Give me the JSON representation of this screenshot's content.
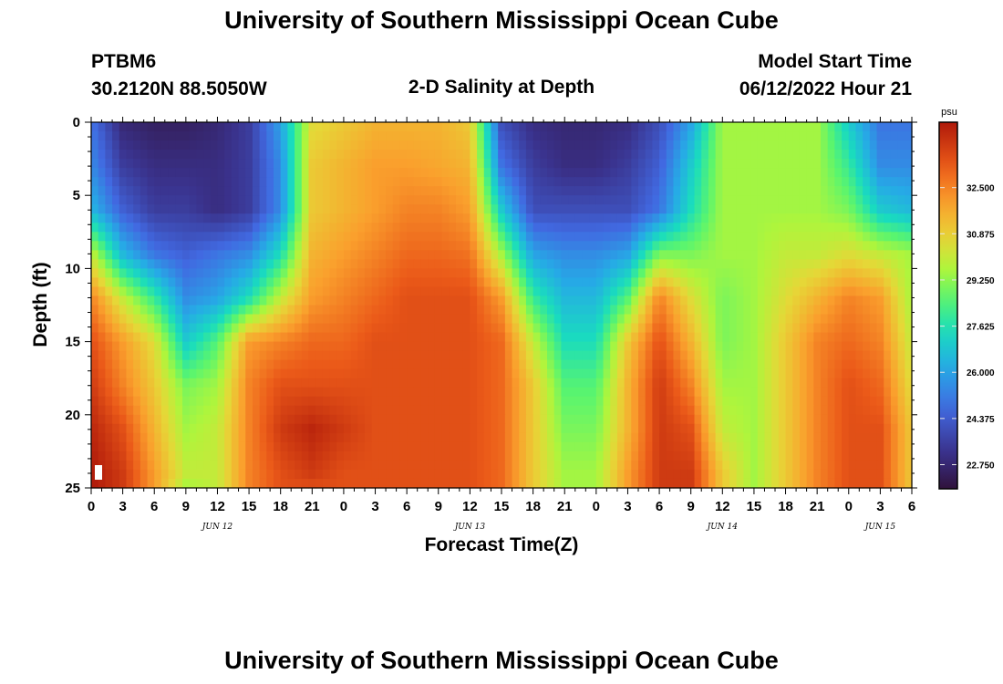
{
  "page": {
    "title_top": "University of Southern Mississippi Ocean Cube",
    "title_bottom": "University of Southern Mississippi Ocean Cube",
    "station": "PTBM6",
    "coords": "30.2120N  88.5050W",
    "plot_title": "2-D Salinity at Depth",
    "model_label": "Model Start Time",
    "model_time": "06/12/2022 Hour 21"
  },
  "chart_data": {
    "type": "heatmap",
    "title": "2-D Salinity at Depth",
    "xlabel": "Forecast Time(Z)",
    "ylabel": "Depth (ft)",
    "x_tick_labels": [
      "0",
      "3",
      "6",
      "9",
      "12",
      "15",
      "18",
      "21",
      "0",
      "3",
      "6",
      "9",
      "12",
      "15",
      "18",
      "21",
      "0",
      "3",
      "6",
      "9",
      "12",
      "15",
      "18",
      "21",
      "0",
      "3",
      "6"
    ],
    "x_range_hours": [
      0,
      78
    ],
    "date_labels": [
      {
        "label": "JUN 12",
        "hour": 12
      },
      {
        "label": "JUN 13",
        "hour": 36
      },
      {
        "label": "JUN 14",
        "hour": 60
      },
      {
        "label": "JUN 15",
        "hour": 75
      }
    ],
    "y_ticks": [
      0,
      5,
      10,
      15,
      20,
      25
    ],
    "ylim": [
      0,
      25
    ],
    "colorbar": {
      "unit": "psu",
      "min": 21.9,
      "max": 34.8,
      "ticks": [
        "32.500",
        "30.875",
        "29.250",
        "27.625",
        "26.000",
        "24.375",
        "22.750"
      ]
    },
    "salinity_psu": {
      "depth_ft": [
        0,
        3,
        6,
        9,
        12,
        15,
        18,
        21,
        24,
        25
      ],
      "time_h": [
        0,
        3,
        6,
        9,
        12,
        15,
        18,
        21,
        24,
        27,
        30,
        33,
        36,
        39,
        42,
        45,
        48,
        51,
        54,
        57,
        60,
        63,
        66,
        69,
        72,
        75,
        78
      ],
      "rows": [
        [
          25.0,
          22.8,
          22.5,
          22.5,
          22.8,
          23.5,
          26.0,
          30.5,
          31.0,
          31.5,
          31.5,
          31.5,
          31.0,
          24.0,
          23.0,
          22.8,
          22.8,
          23.0,
          24.0,
          26.0,
          29.5,
          29.5,
          29.5,
          29.5,
          27.0,
          25.0,
          25.0
        ],
        [
          25.5,
          23.5,
          23.0,
          23.0,
          23.0,
          23.5,
          25.5,
          31.0,
          31.5,
          32.0,
          32.0,
          31.8,
          31.5,
          25.0,
          23.5,
          23.0,
          23.0,
          23.5,
          24.5,
          27.0,
          29.5,
          29.5,
          29.5,
          29.5,
          28.0,
          25.5,
          25.5
        ],
        [
          26.5,
          24.5,
          23.5,
          23.5,
          23.0,
          23.5,
          25.5,
          31.0,
          31.5,
          32.0,
          32.5,
          32.5,
          32.0,
          27.0,
          24.0,
          24.0,
          24.0,
          24.0,
          25.0,
          27.5,
          29.5,
          29.5,
          29.5,
          29.5,
          29.0,
          27.0,
          26.5
        ],
        [
          30.0,
          26.5,
          25.0,
          24.5,
          25.0,
          25.5,
          27.5,
          31.5,
          32.0,
          32.5,
          33.0,
          33.0,
          32.8,
          29.5,
          26.0,
          25.5,
          25.5,
          26.0,
          29.0,
          29.0,
          29.5,
          29.5,
          30.0,
          30.0,
          30.5,
          30.0,
          29.5
        ],
        [
          32.5,
          30.0,
          28.0,
          25.5,
          26.0,
          27.5,
          30.0,
          32.0,
          32.5,
          33.0,
          33.5,
          33.5,
          33.5,
          32.0,
          28.0,
          26.5,
          26.5,
          28.5,
          32.5,
          30.5,
          29.0,
          29.5,
          30.5,
          31.5,
          32.5,
          32.0,
          29.5
        ],
        [
          33.5,
          32.0,
          30.5,
          27.0,
          28.5,
          32.0,
          32.5,
          33.0,
          33.0,
          33.5,
          33.5,
          33.5,
          33.5,
          33.0,
          30.0,
          27.5,
          27.5,
          31.0,
          33.5,
          31.5,
          29.0,
          29.5,
          31.0,
          32.5,
          33.0,
          32.5,
          30.0
        ],
        [
          34.0,
          32.5,
          31.0,
          29.0,
          29.5,
          32.5,
          33.5,
          33.5,
          33.5,
          33.5,
          33.5,
          33.5,
          33.5,
          33.0,
          31.0,
          28.5,
          28.5,
          31.5,
          34.0,
          32.5,
          29.5,
          29.5,
          31.0,
          32.5,
          33.5,
          33.0,
          30.5
        ],
        [
          34.5,
          33.5,
          31.5,
          29.5,
          30.0,
          32.5,
          34.0,
          34.5,
          34.0,
          33.5,
          33.5,
          33.5,
          33.5,
          33.0,
          31.0,
          29.0,
          29.0,
          31.5,
          34.0,
          33.5,
          30.0,
          29.5,
          31.0,
          32.5,
          33.5,
          33.5,
          31.0
        ],
        [
          34.8,
          34.0,
          32.0,
          30.0,
          30.0,
          32.5,
          33.5,
          34.0,
          33.5,
          33.5,
          33.5,
          33.5,
          33.5,
          33.0,
          31.0,
          29.5,
          29.5,
          32.0,
          34.0,
          34.0,
          31.0,
          29.5,
          31.0,
          32.5,
          33.5,
          33.5,
          31.0
        ],
        [
          34.8,
          34.0,
          32.0,
          29.5,
          30.0,
          32.5,
          33.5,
          33.5,
          33.5,
          33.5,
          33.5,
          33.5,
          33.5,
          33.0,
          31.0,
          29.5,
          29.5,
          32.0,
          34.0,
          34.0,
          31.0,
          29.5,
          31.0,
          32.5,
          33.5,
          33.5,
          31.0
        ]
      ]
    }
  }
}
